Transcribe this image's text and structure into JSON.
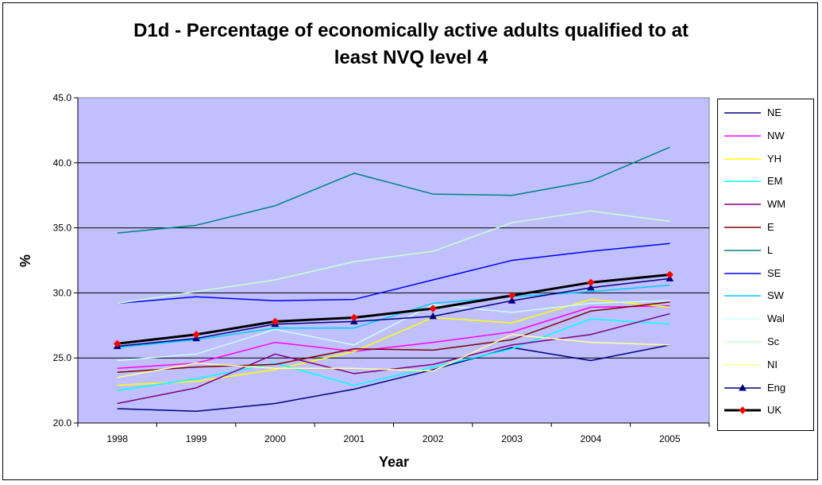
{
  "chart_data": {
    "type": "line",
    "title": "D1d - Percentage of economically active adults qualified to at\nleast NVQ level 4",
    "xlabel": "Year",
    "ylabel": "%",
    "categories": [
      "1998",
      "1999",
      "2000",
      "2001",
      "2002",
      "2003",
      "2004",
      "2005"
    ],
    "ylim": [
      20.0,
      45.0
    ],
    "yticks": [
      "20.0",
      "25.0",
      "30.0",
      "35.0",
      "40.0",
      "45.0"
    ],
    "grid": "horizontal",
    "legend_position": "right",
    "plot_background": "#C0C0FF",
    "series": [
      {
        "name": "NE",
        "color": "#000080",
        "values": [
          21.1,
          20.9,
          21.5,
          22.6,
          24.1,
          25.8,
          24.8,
          26.0
        ]
      },
      {
        "name": "NW",
        "color": "#FF00FF",
        "values": [
          24.2,
          24.6,
          26.2,
          25.5,
          26.2,
          27.0,
          28.9,
          29.0
        ]
      },
      {
        "name": "YH",
        "color": "#FFFF00",
        "values": [
          22.9,
          23.2,
          24.1,
          25.5,
          28.1,
          27.7,
          29.5,
          28.9
        ]
      },
      {
        "name": "EM",
        "color": "#00FFFF",
        "values": [
          22.5,
          23.4,
          24.6,
          22.9,
          24.3,
          25.7,
          28.0,
          27.6
        ]
      },
      {
        "name": "WM",
        "color": "#800080",
        "values": [
          21.5,
          22.7,
          25.3,
          23.8,
          24.5,
          26.0,
          26.8,
          28.4
        ]
      },
      {
        "name": "E",
        "color": "#800000",
        "values": [
          23.9,
          24.3,
          24.5,
          25.7,
          25.6,
          26.4,
          28.6,
          29.3
        ]
      },
      {
        "name": "L",
        "color": "#008080",
        "values": [
          34.6,
          35.2,
          36.7,
          39.2,
          37.6,
          37.5,
          38.6,
          41.2
        ]
      },
      {
        "name": "SE",
        "color": "#0000FF",
        "values": [
          29.2,
          29.7,
          29.4,
          29.5,
          31.0,
          32.5,
          33.2,
          33.8
        ]
      },
      {
        "name": "SW",
        "color": "#00CCFF",
        "values": [
          25.8,
          26.4,
          27.3,
          27.3,
          29.2,
          29.7,
          30.1,
          30.6
        ]
      },
      {
        "name": "Wal",
        "color": "#CCFFFF",
        "values": [
          24.8,
          25.3,
          27.2,
          26.0,
          29.1,
          28.5,
          29.2,
          29.4
        ]
      },
      {
        "name": "Sc",
        "color": "#CCFFCC",
        "values": [
          29.2,
          30.1,
          31.0,
          32.4,
          33.2,
          35.4,
          36.3,
          35.5
        ]
      },
      {
        "name": "NI",
        "color": "#FFFF99",
        "values": [
          23.5,
          24.6,
          24.2,
          24.2,
          24.0,
          26.8,
          26.2,
          26.0
        ]
      },
      {
        "name": "Eng",
        "color": "#000080",
        "marker": "triangle",
        "values": [
          25.9,
          26.5,
          27.6,
          27.8,
          28.2,
          29.4,
          30.4,
          31.1
        ]
      },
      {
        "name": "UK",
        "color": "#000000",
        "marker": "diamond",
        "marker_color": "#FF0000",
        "bold": true,
        "values": [
          26.1,
          26.8,
          27.8,
          28.1,
          28.8,
          29.8,
          30.8,
          31.4
        ]
      }
    ]
  }
}
